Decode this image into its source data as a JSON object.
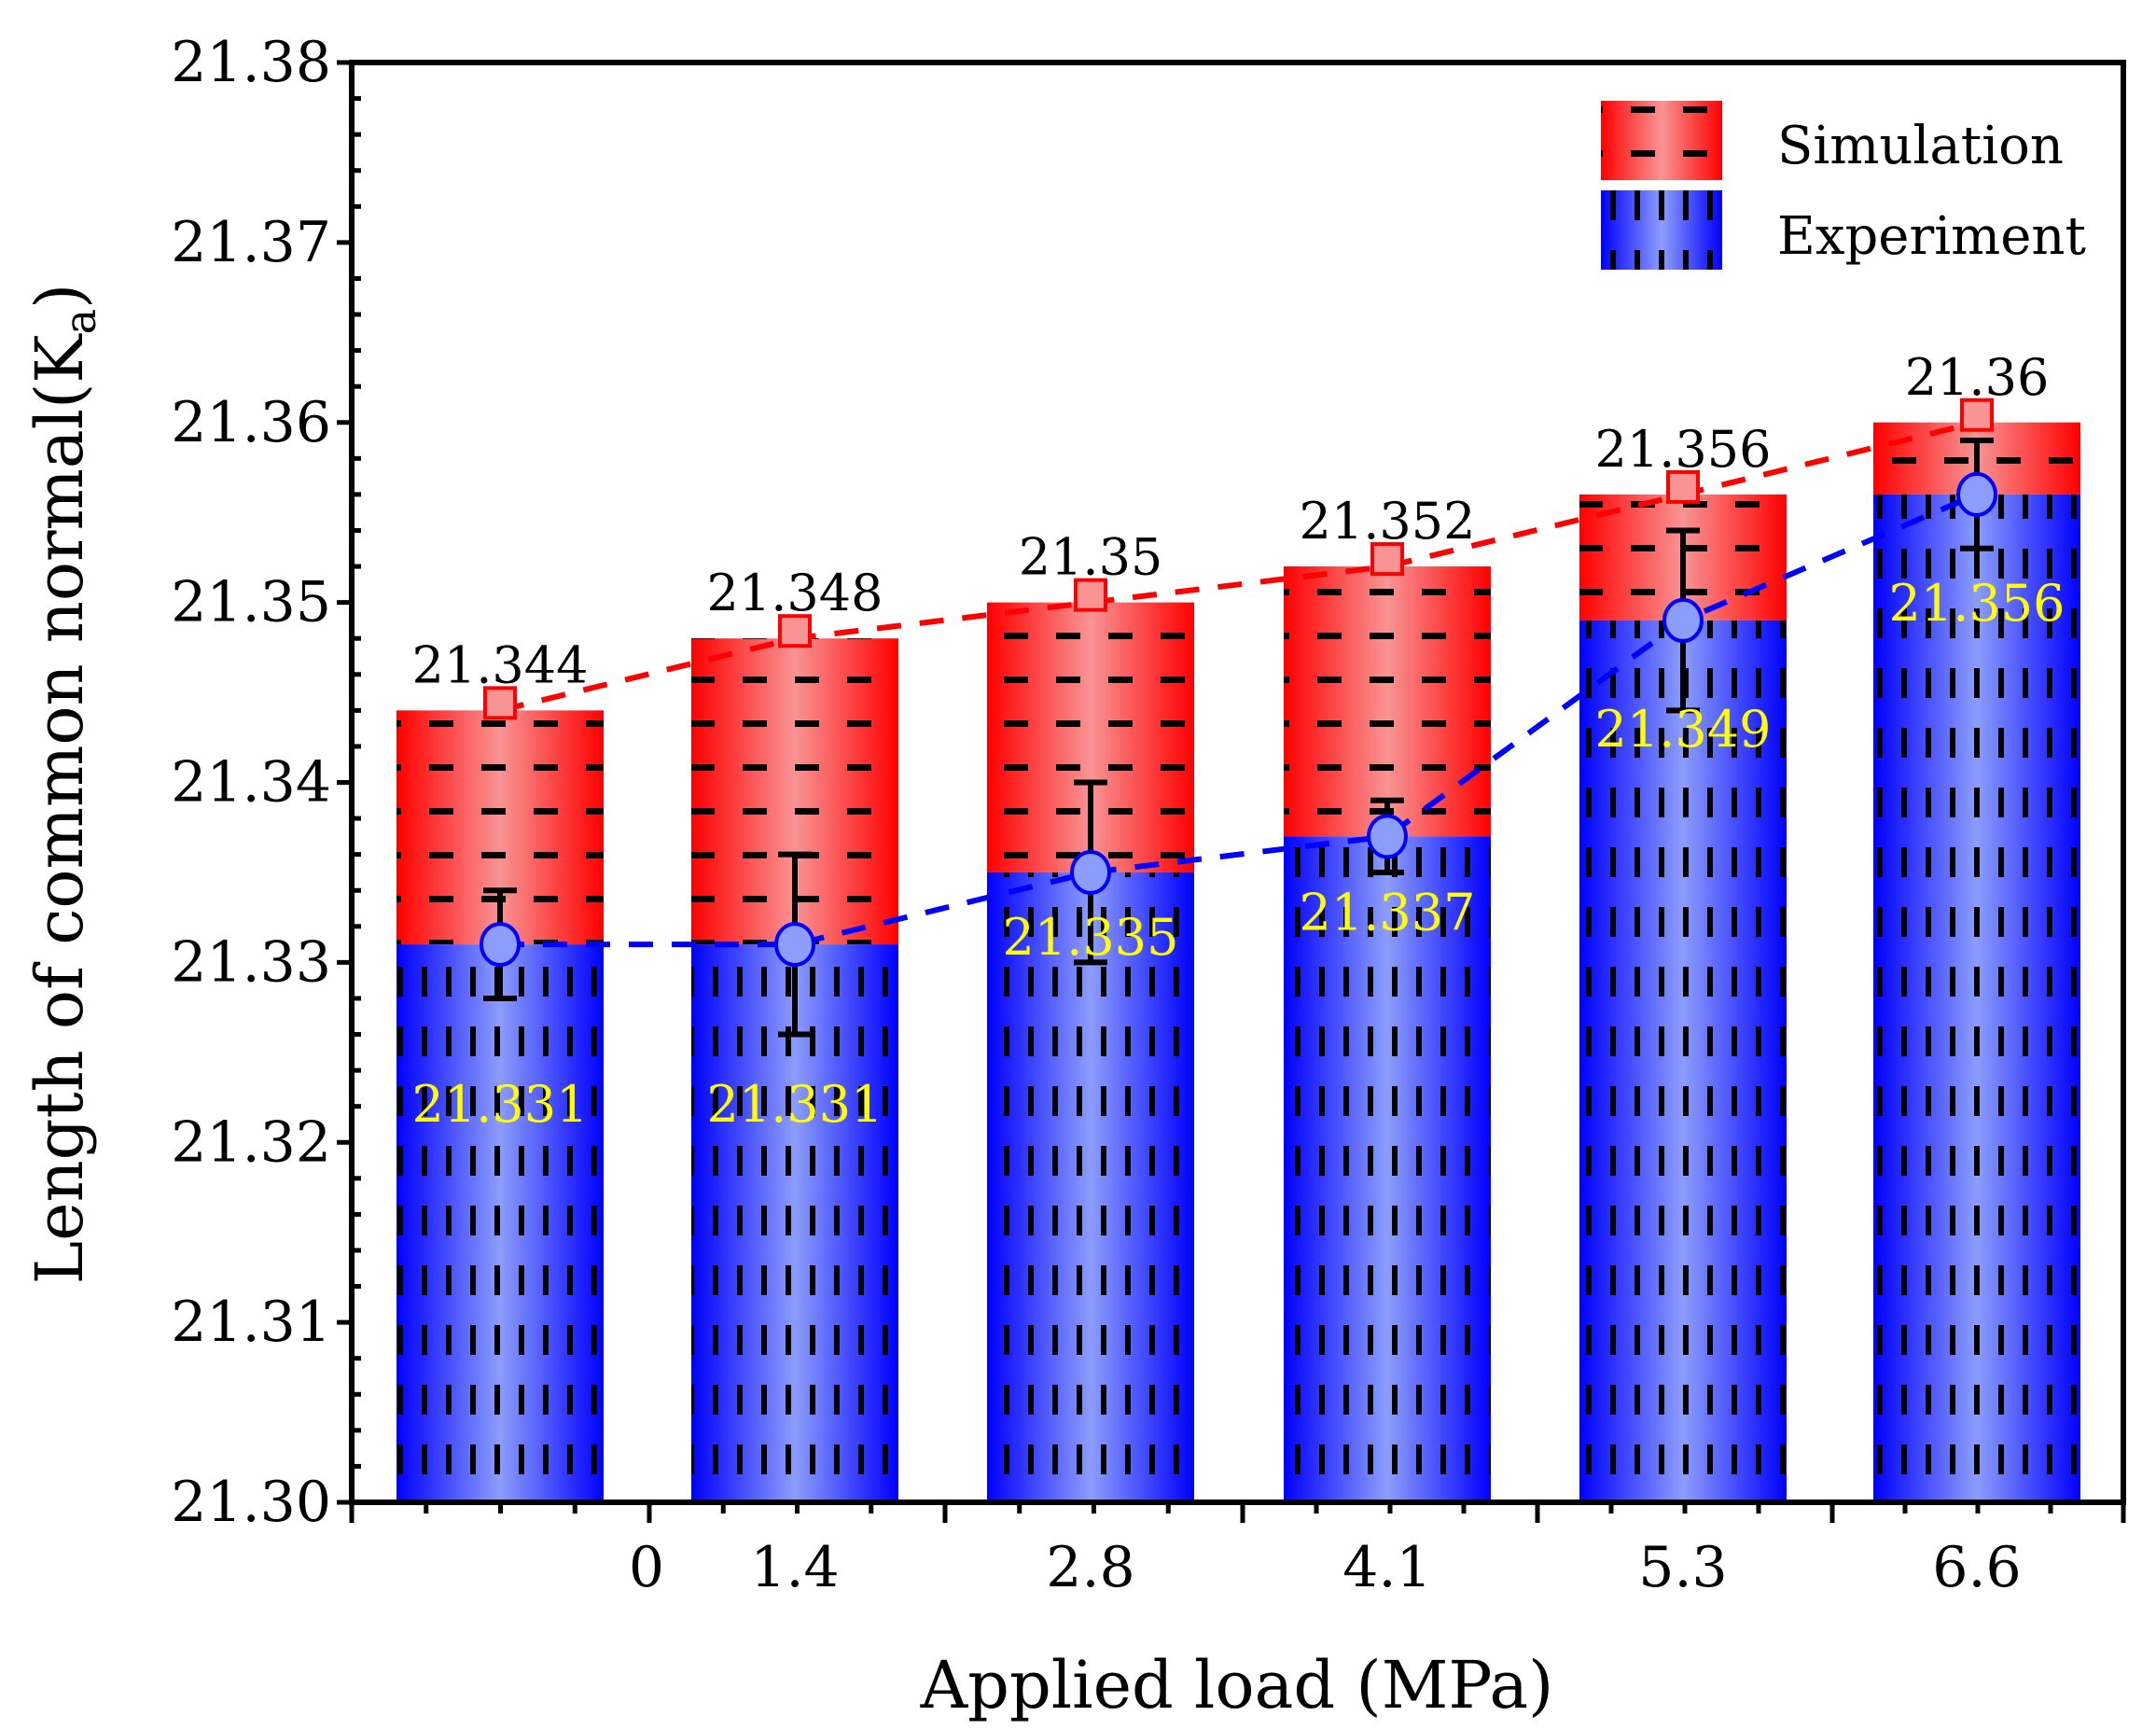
{
  "chart_data": {
    "type": "bar",
    "title": "",
    "xlabel": "Applied load (MPa)",
    "ylabel_main": "Length of common normal(K",
    "ylabel_sub": "a",
    "ylabel_close": ")",
    "ylim": [
      21.3,
      21.38
    ],
    "yticks": [
      "21.30",
      "21.31",
      "21.32",
      "21.33",
      "21.34",
      "21.35",
      "21.36",
      "21.37",
      "21.38"
    ],
    "x_tick_labels": [
      "0",
      "1.4",
      "2.8",
      "4.1",
      "5.3",
      "6.6"
    ],
    "legend_position": "top-right",
    "colors": {
      "simulation": "#ff0000",
      "simulation_light": "#f99494",
      "experiment": "#0000ff",
      "experiment_light": "#8c9dfc",
      "exp_label": "#ffff00"
    },
    "series": [
      {
        "name": "Simulation",
        "values": [
          21.344,
          21.348,
          21.35,
          21.352,
          21.356,
          21.36
        ],
        "labels": [
          "21.344",
          "21.348",
          "21.35",
          "21.352",
          "21.356",
          "21.36"
        ]
      },
      {
        "name": "Experiment",
        "values": [
          21.331,
          21.331,
          21.335,
          21.337,
          21.349,
          21.356
        ],
        "labels": [
          "21.331",
          "21.331",
          "21.335",
          "21.337",
          "21.349",
          "21.356"
        ],
        "error": [
          0.003,
          0.005,
          0.005,
          0.002,
          0.005,
          0.003
        ]
      }
    ]
  }
}
